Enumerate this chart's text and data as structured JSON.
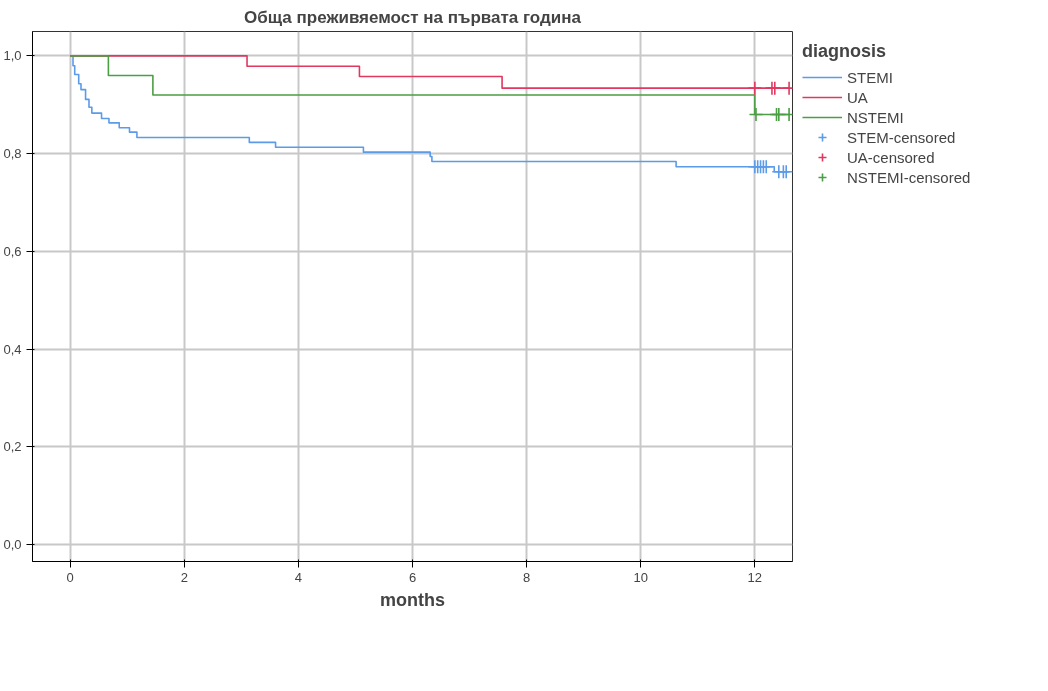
{
  "chart_data": {
    "type": "step",
    "title": "Обща преживяемост на първата година",
    "xlabel": "months",
    "legend_title": "diagnosis",
    "xlim": [
      -0.66,
      12.66
    ],
    "ylim": [
      -0.035,
      1.05
    ],
    "xticks": [
      0,
      2,
      4,
      6,
      8,
      10,
      12
    ],
    "yticks": [
      {
        "value": 0,
        "label": "0,0"
      },
      {
        "value": 0.2,
        "label": "0,2"
      },
      {
        "value": 0.4,
        "label": "0,4"
      },
      {
        "value": 0.6,
        "label": "0,6"
      },
      {
        "value": 0.8,
        "label": "0,8"
      },
      {
        "value": 1.0,
        "label": "1,0"
      }
    ],
    "grid": true,
    "legend": "right",
    "series": [
      {
        "name": "STEMI",
        "color": "#5b9be8",
        "marker": "none",
        "x": [
          0,
          0.05,
          0.08,
          0.15,
          0.19,
          0.27,
          0.33,
          0.38,
          0.55,
          0.68,
          0.86,
          1.04,
          1.17,
          3.14,
          3.6,
          5.14,
          6.31,
          6.34,
          10.62,
          12.34,
          12.6
        ],
        "values": [
          1.0,
          0.98,
          0.962,
          0.943,
          0.931,
          0.911,
          0.895,
          0.883,
          0.872,
          0.863,
          0.853,
          0.844,
          0.833,
          0.823,
          0.813,
          0.803,
          0.794,
          0.784,
          0.773,
          0.763,
          0.763
        ]
      },
      {
        "name": "UA",
        "color": "#e0385f",
        "marker": "none",
        "x": [
          0,
          3.1,
          5.07,
          7.57,
          12.6
        ],
        "values": [
          1.0,
          0.979,
          0.958,
          0.934,
          0.934
        ]
      },
      {
        "name": "NSTEMI",
        "color": "#4a9e43",
        "marker": "none",
        "x": [
          0,
          0.67,
          1.45,
          12.0,
          12.6
        ],
        "values": [
          1.0,
          0.96,
          0.92,
          0.88,
          0.88
        ]
      },
      {
        "name": "STEM-censored",
        "type": "scatter",
        "color": "#5b9be8",
        "marker": "cross",
        "x": [
          12.0,
          12.05,
          12.1,
          12.15,
          12.2,
          12.42,
          12.5,
          12.55
        ],
        "values": [
          0.773,
          0.773,
          0.773,
          0.773,
          0.773,
          0.763,
          0.763,
          0.763
        ]
      },
      {
        "name": "UA-censored",
        "type": "scatter",
        "color": "#e0385f",
        "marker": "cross",
        "x": [
          12.0,
          12.3,
          12.35,
          12.6
        ],
        "values": [
          0.934,
          0.934,
          0.934,
          0.934
        ]
      },
      {
        "name": "NSTEMI-censored",
        "type": "scatter",
        "color": "#4a9e43",
        "marker": "cross",
        "x": [
          12.02,
          12.38,
          12.42,
          12.6
        ],
        "values": [
          0.88,
          0.88,
          0.88,
          0.88
        ]
      }
    ]
  }
}
